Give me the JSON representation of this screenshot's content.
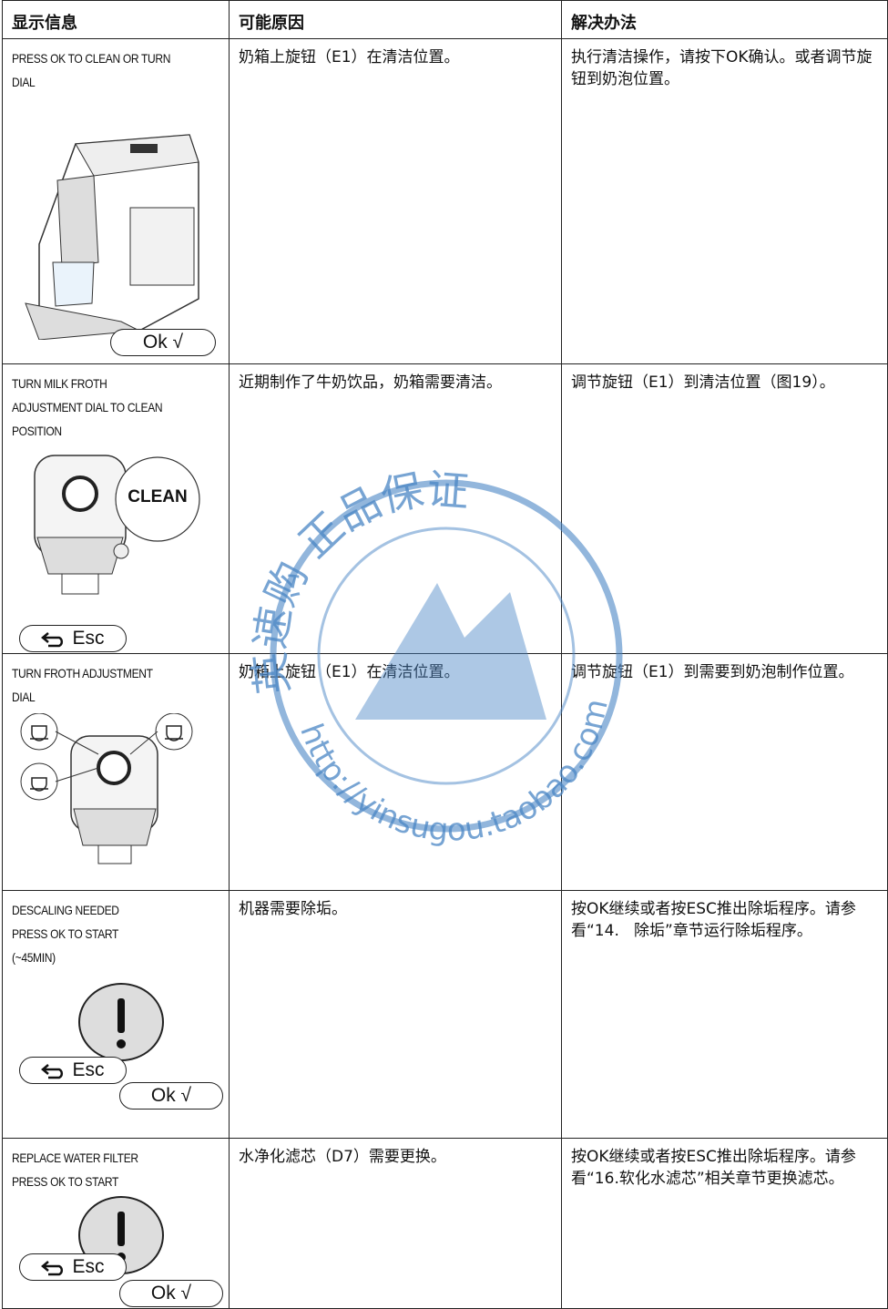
{
  "table": {
    "header": [
      "显示信息",
      "可能原因",
      "解决办法"
    ],
    "rows": [
      {
        "message": [
          "PRESS OK TO CLEAN OR TURN",
          "DIAL"
        ],
        "cause": "奶箱上旋钮（E1）在清洁位置。",
        "solution": "执行清洁操作，请按下OK确认。或者调节旋钮到奶泡位置。",
        "buttons": [
          "Ok √"
        ]
      },
      {
        "message": [
          "TURN MILK FROTH",
          "ADJUSTMENT DIAL TO CLEAN",
          "POSITION"
        ],
        "cause": "近期制作了牛奶饮品，奶箱需要清洁。",
        "solution": "调节旋钮（E1）到清洁位置（图19）。",
        "buttons": [
          "CLEAN",
          "Esc"
        ]
      },
      {
        "message": [
          "TURN FROTH ADJUSTMENT",
          "DIAL"
        ],
        "cause": "奶箱上旋钮（E1）在清洁位置。",
        "solution": "调节旋钮（E1）到需要到奶泡制作位置。",
        "buttons": []
      },
      {
        "message": [
          "DESCALING NEEDED",
          "PRESS OK TO START",
          "(~45MIN)"
        ],
        "cause": "机器需要除垢。",
        "solution": "按OK继续或者按ESC推出除垢程序。请参看“14.   除垢”章节运行除垢程序。",
        "buttons": [
          "Esc",
          "Ok √"
        ]
      },
      {
        "message": [
          "REPLACE WATER FILTER",
          "PRESS OK TO START"
        ],
        "cause": "水净化滤芯（D7）需要更换。",
        "solution": "按OK继续或者按ESC推出除垢程序。请参看“16.软化水滤芯”相关章节更换滤芯。",
        "buttons": [
          "Esc",
          "Ok √"
        ]
      }
    ]
  },
  "watermark": {
    "top": "英速购 正品保证",
    "bottom": "http://yinsugou.taobao.com"
  }
}
